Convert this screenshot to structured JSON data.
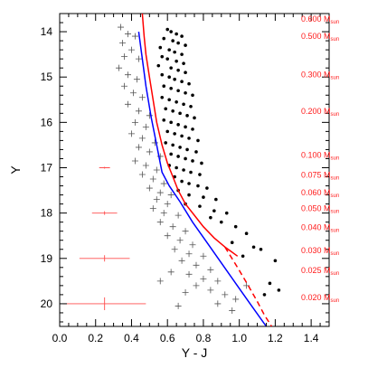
{
  "chart_data": {
    "type": "scatter",
    "title": "",
    "xlabel": "Y - J",
    "ylabel": "Y",
    "xlim": [
      0.0,
      1.5
    ],
    "ylim": [
      20.5,
      13.6
    ],
    "y_inverted": true,
    "x_ticks": [
      "0.0",
      "0.2",
      "0.4",
      "0.6",
      "0.8",
      "1.0",
      "1.2",
      "1.4"
    ],
    "x_tick_values": [
      0.0,
      0.2,
      0.4,
      0.6,
      0.8,
      1.0,
      1.2,
      1.4
    ],
    "y_ticks": [
      "14",
      "15",
      "16",
      "17",
      "18",
      "19",
      "20"
    ],
    "y_tick_values": [
      14,
      15,
      16,
      17,
      18,
      19,
      20
    ],
    "grid": false,
    "colors": {
      "isochrone_red": "#ff0000",
      "isochrone_blue": "#0000ff",
      "error_bar": "#ff4d4d",
      "members": "#000000",
      "nonmembers": "#555555"
    },
    "mass_labels": [
      {
        "value": "0.600",
        "unit_main": "M",
        "unit_sub": "sun",
        "y": 13.72
      },
      {
        "value": "0.500",
        "unit_main": "M",
        "unit_sub": "sun",
        "y": 14.1
      },
      {
        "value": "0.300",
        "unit_main": "M",
        "unit_sub": "sun",
        "y": 14.95
      },
      {
        "value": "0.200",
        "unit_main": "M",
        "unit_sub": "sun",
        "y": 15.75
      },
      {
        "value": "0.100",
        "unit_main": "M",
        "unit_sub": "sun",
        "y": 16.72
      },
      {
        "value": "0.075",
        "unit_main": "M",
        "unit_sub": "sun",
        "y": 17.16
      },
      {
        "value": "0.060",
        "unit_main": "M",
        "unit_sub": "sun",
        "y": 17.55
      },
      {
        "value": "0.050",
        "unit_main": "M",
        "unit_sub": "sun",
        "y": 17.9
      },
      {
        "value": "0.040",
        "unit_main": "M",
        "unit_sub": "sun",
        "y": 18.32
      },
      {
        "value": "0.030",
        "unit_main": "M",
        "unit_sub": "sun",
        "y": 18.82
      },
      {
        "value": "0.025",
        "unit_main": "M",
        "unit_sub": "sun",
        "y": 19.26
      },
      {
        "value": "0.020",
        "unit_main": "M",
        "unit_sub": "sun",
        "y": 19.86
      }
    ],
    "error_bars": [
      {
        "x": 0.25,
        "y": 17.0,
        "xerr": 0.03,
        "yerr": 0.02
      },
      {
        "x": 0.25,
        "y": 18.0,
        "xerr": 0.07,
        "yerr": 0.04
      },
      {
        "x": 0.25,
        "y": 19.0,
        "xerr": 0.14,
        "yerr": 0.07
      },
      {
        "x": 0.25,
        "y": 20.0,
        "xerr": 0.23,
        "yerr": 0.14
      }
    ],
    "series": [
      {
        "kind": "line",
        "style": "solid",
        "color": "#ff0000",
        "x": [
          0.46,
          0.47,
          0.48,
          0.5,
          0.52,
          0.54,
          0.57,
          0.6,
          0.63,
          0.66,
          0.7,
          0.75,
          0.8,
          0.86,
          0.92,
          0.99
        ],
        "y": [
          13.6,
          14.1,
          14.5,
          15.0,
          15.5,
          16.0,
          16.5,
          16.9,
          17.2,
          17.5,
          17.8,
          18.05,
          18.3,
          18.55,
          18.75,
          18.95
        ]
      },
      {
        "kind": "line",
        "style": "dashed",
        "color": "#ff0000",
        "x": [
          0.92,
          0.99,
          1.05,
          1.1,
          1.14,
          1.18
        ],
        "y": [
          18.75,
          19.2,
          19.6,
          19.95,
          20.25,
          20.5
        ]
      },
      {
        "kind": "line",
        "style": "solid",
        "color": "#0000ff",
        "x": [
          0.44,
          0.46,
          0.48,
          0.51,
          0.54,
          0.57,
          0.61,
          0.67,
          0.74,
          0.82,
          0.9,
          0.98,
          1.06,
          1.15
        ],
        "y": [
          14.0,
          14.6,
          15.2,
          15.9,
          16.5,
          17.1,
          17.4,
          17.75,
          18.2,
          18.65,
          19.1,
          19.55,
          20.0,
          20.5
        ]
      },
      {
        "kind": "scatter",
        "marker": "dot",
        "color": "#000000",
        "points": [
          [
            0.6,
            13.95
          ],
          [
            0.62,
            14.0
          ],
          [
            0.65,
            14.05
          ],
          [
            0.68,
            14.1
          ],
          [
            0.58,
            14.15
          ],
          [
            0.63,
            14.2
          ],
          [
            0.66,
            14.25
          ],
          [
            0.7,
            14.3
          ],
          [
            0.56,
            14.35
          ],
          [
            0.61,
            14.4
          ],
          [
            0.64,
            14.45
          ],
          [
            0.68,
            14.5
          ],
          [
            0.57,
            14.55
          ],
          [
            0.6,
            14.6
          ],
          [
            0.65,
            14.65
          ],
          [
            0.69,
            14.7
          ],
          [
            0.55,
            14.75
          ],
          [
            0.62,
            14.8
          ],
          [
            0.66,
            14.85
          ],
          [
            0.7,
            14.9
          ],
          [
            0.57,
            14.95
          ],
          [
            0.61,
            15.0
          ],
          [
            0.64,
            15.05
          ],
          [
            0.68,
            15.1
          ],
          [
            0.72,
            15.15
          ],
          [
            0.58,
            15.2
          ],
          [
            0.62,
            15.25
          ],
          [
            0.66,
            15.3
          ],
          [
            0.7,
            15.35
          ],
          [
            0.74,
            15.4
          ],
          [
            0.57,
            15.45
          ],
          [
            0.61,
            15.5
          ],
          [
            0.65,
            15.55
          ],
          [
            0.69,
            15.6
          ],
          [
            0.73,
            15.65
          ],
          [
            0.59,
            15.7
          ],
          [
            0.63,
            15.75
          ],
          [
            0.67,
            15.8
          ],
          [
            0.71,
            15.85
          ],
          [
            0.75,
            15.9
          ],
          [
            0.58,
            15.95
          ],
          [
            0.62,
            16.0
          ],
          [
            0.66,
            16.05
          ],
          [
            0.7,
            16.1
          ],
          [
            0.74,
            16.15
          ],
          [
            0.6,
            16.2
          ],
          [
            0.64,
            16.25
          ],
          [
            0.68,
            16.3
          ],
          [
            0.72,
            16.35
          ],
          [
            0.77,
            16.4
          ],
          [
            0.59,
            16.45
          ],
          [
            0.63,
            16.5
          ],
          [
            0.67,
            16.55
          ],
          [
            0.71,
            16.6
          ],
          [
            0.76,
            16.65
          ],
          [
            0.62,
            16.7
          ],
          [
            0.66,
            16.75
          ],
          [
            0.7,
            16.8
          ],
          [
            0.74,
            16.85
          ],
          [
            0.79,
            16.9
          ],
          [
            0.61,
            16.95
          ],
          [
            0.65,
            17.0
          ],
          [
            0.69,
            17.05
          ],
          [
            0.73,
            17.1
          ],
          [
            0.78,
            17.15
          ],
          [
            0.64,
            17.2
          ],
          [
            0.68,
            17.3
          ],
          [
            0.72,
            17.35
          ],
          [
            0.77,
            17.4
          ],
          [
            0.82,
            17.45
          ],
          [
            0.66,
            17.5
          ],
          [
            0.72,
            17.6
          ],
          [
            0.8,
            17.65
          ],
          [
            0.87,
            17.7
          ],
          [
            0.7,
            17.8
          ],
          [
            0.78,
            17.85
          ],
          [
            0.86,
            17.95
          ],
          [
            0.93,
            18.0
          ],
          [
            0.84,
            18.1
          ],
          [
            0.9,
            18.2
          ],
          [
            0.98,
            18.3
          ],
          [
            1.04,
            18.45
          ],
          [
            0.96,
            18.65
          ],
          [
            1.08,
            18.75
          ],
          [
            1.12,
            18.8
          ],
          [
            1.02,
            18.95
          ],
          [
            1.2,
            19.05
          ],
          [
            1.17,
            19.55
          ],
          [
            1.22,
            19.7
          ],
          [
            1.14,
            19.8
          ]
        ]
      },
      {
        "kind": "scatter",
        "marker": "plus",
        "color": "#555555",
        "points": [
          [
            0.34,
            13.9
          ],
          [
            0.38,
            14.05
          ],
          [
            0.42,
            14.1
          ],
          [
            0.35,
            14.25
          ],
          [
            0.4,
            14.4
          ],
          [
            0.36,
            14.55
          ],
          [
            0.44,
            14.6
          ],
          [
            0.33,
            14.8
          ],
          [
            0.38,
            14.95
          ],
          [
            0.43,
            15.05
          ],
          [
            0.36,
            15.2
          ],
          [
            0.41,
            15.35
          ],
          [
            0.46,
            15.45
          ],
          [
            0.38,
            15.6
          ],
          [
            0.44,
            15.75
          ],
          [
            0.5,
            15.85
          ],
          [
            0.42,
            16.0
          ],
          [
            0.48,
            16.1
          ],
          [
            0.4,
            16.25
          ],
          [
            0.46,
            16.35
          ],
          [
            0.53,
            16.45
          ],
          [
            0.44,
            16.55
          ],
          [
            0.5,
            16.65
          ],
          [
            0.56,
            16.75
          ],
          [
            0.42,
            16.85
          ],
          [
            0.48,
            16.95
          ],
          [
            0.54,
            17.05
          ],
          [
            0.46,
            17.15
          ],
          [
            0.52,
            17.25
          ],
          [
            0.58,
            17.35
          ],
          [
            0.5,
            17.45
          ],
          [
            0.56,
            17.55
          ],
          [
            0.62,
            17.6
          ],
          [
            0.54,
            17.7
          ],
          [
            0.6,
            17.8
          ],
          [
            0.52,
            17.9
          ],
          [
            0.58,
            18.0
          ],
          [
            0.66,
            18.05
          ],
          [
            0.56,
            18.2
          ],
          [
            0.63,
            18.3
          ],
          [
            0.7,
            18.4
          ],
          [
            0.6,
            18.5
          ],
          [
            0.67,
            18.6
          ],
          [
            0.74,
            18.7
          ],
          [
            0.64,
            18.8
          ],
          [
            0.72,
            18.9
          ],
          [
            0.8,
            18.95
          ],
          [
            0.68,
            19.05
          ],
          [
            0.76,
            19.15
          ],
          [
            0.84,
            19.25
          ],
          [
            0.72,
            19.35
          ],
          [
            0.8,
            19.45
          ],
          [
            0.88,
            19.5
          ],
          [
            0.76,
            19.6
          ],
          [
            0.84,
            19.7
          ],
          [
            0.92,
            19.8
          ],
          [
            0.98,
            19.9
          ],
          [
            0.88,
            20.0
          ],
          [
            0.96,
            20.15
          ],
          [
            1.04,
            19.6
          ],
          [
            0.62,
            19.3
          ],
          [
            0.56,
            19.5
          ],
          [
            0.7,
            19.75
          ],
          [
            0.66,
            20.05
          ]
        ]
      }
    ]
  }
}
